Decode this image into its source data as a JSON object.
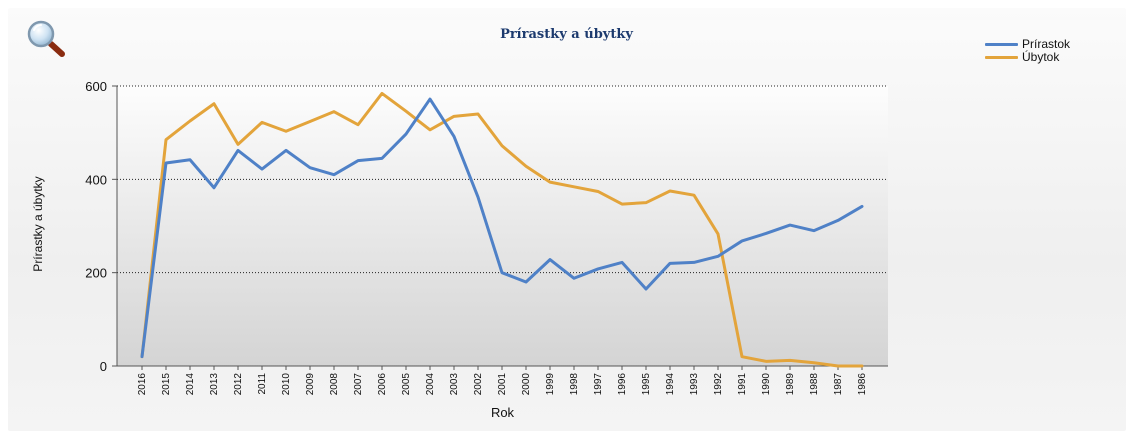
{
  "chart_data": {
    "type": "line",
    "title": "Prírastky a úbytky",
    "xlabel": "Rok",
    "ylabel": "Prírastky a úbytky",
    "ylim": [
      0,
      600
    ],
    "yticks": [
      0,
      200,
      400,
      600
    ],
    "grid": "horizontal dotted",
    "legend_position": "top-right",
    "categories": [
      "2016",
      "2015",
      "2014",
      "2013",
      "2012",
      "2011",
      "2010",
      "2009",
      "2008",
      "2007",
      "2006",
      "2005",
      "2004",
      "2003",
      "2002",
      "2001",
      "2000",
      "1999",
      "1998",
      "1997",
      "1996",
      "1995",
      "1994",
      "1993",
      "1992",
      "1991",
      "1990",
      "1989",
      "1988",
      "1987",
      "1986"
    ],
    "series": [
      {
        "name": "Prírastok",
        "color": "#4f81c7",
        "values": [
          20,
          435,
          442,
          382,
          462,
          422,
          462,
          425,
          410,
          440,
          445,
          497,
          572,
          492,
          362,
          200,
          180,
          228,
          188,
          208,
          222,
          165,
          220,
          222,
          235,
          268,
          284,
          302,
          290,
          312,
          342
        ]
      },
      {
        "name": "Úbytok",
        "color": "#e3a43b",
        "values": [
          20,
          485,
          525,
          562,
          475,
          522,
          503,
          524,
          545,
          517,
          584,
          546,
          506,
          535,
          540,
          472,
          428,
          394,
          384,
          374,
          347,
          350,
          375,
          366,
          283,
          20,
          10,
          12,
          7,
          0,
          0
        ]
      }
    ]
  },
  "toolbar": {
    "zoom_icon": "magnifier-icon"
  }
}
